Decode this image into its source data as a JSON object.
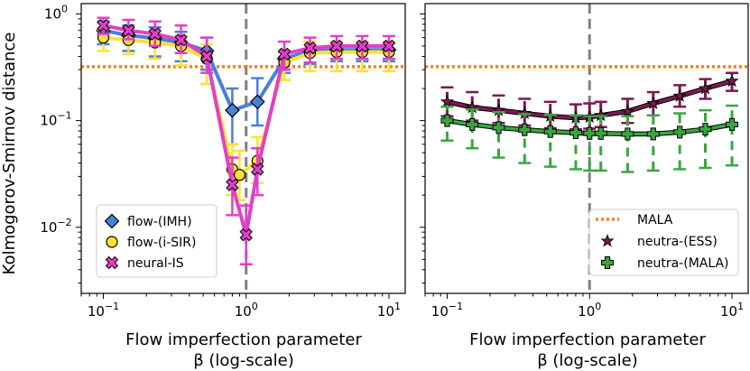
{
  "chart_data": [
    {
      "type": "line",
      "panel": "left",
      "xscale": "log",
      "yscale": "log",
      "xlim": [
        0.07,
        13.0
      ],
      "ylim": [
        0.0024,
        1.25
      ],
      "xticks": [
        {
          "value": 0.1,
          "base": "10",
          "exp": "−1"
        },
        {
          "value": 1,
          "base": "10",
          "exp": "0"
        },
        {
          "value": 10,
          "base": "10",
          "exp": "1"
        }
      ],
      "yticks": [
        {
          "value": 0.01,
          "base": "10",
          "exp": "−2"
        },
        {
          "value": 0.1,
          "base": "10",
          "exp": "−1"
        },
        {
          "value": 1,
          "base": "10",
          "exp": "0"
        }
      ],
      "xlabel_line1": "Flow imperfection parameter",
      "xlabel_line2": "β (log-scale)",
      "ylabel": "Kolmogorov-Smirnov distance",
      "legend_position": "lower-left",
      "vline_x": 1,
      "hline": {
        "name": "MALA",
        "y": 0.32,
        "color": "#ff7f0e"
      },
      "series": [
        {
          "name": "flow-(IMH)",
          "color": "#4a7fd6",
          "marker": "diamond",
          "x": [
            0.1,
            0.15,
            0.23,
            0.35,
            0.53,
            0.8,
            1.2,
            1.85,
            2.8,
            4.3,
            6.5,
            10
          ],
          "y": [
            0.7,
            0.63,
            0.59,
            0.54,
            0.45,
            0.125,
            0.15,
            0.38,
            0.45,
            0.46,
            0.46,
            0.46
          ],
          "err_lo": [
            0.52,
            0.45,
            0.4,
            0.36,
            0.3,
            0.06,
            0.09,
            0.28,
            0.34,
            0.36,
            0.36,
            0.36
          ],
          "err_hi": [
            0.85,
            0.78,
            0.75,
            0.68,
            0.6,
            0.2,
            0.25,
            0.44,
            0.55,
            0.55,
            0.55,
            0.55
          ]
        },
        {
          "name": "flow-(i-SIR)",
          "color": "#ffe033",
          "marker": "circle",
          "x": [
            0.1,
            0.15,
            0.23,
            0.35,
            0.53,
            0.8,
            0.9,
            1.2,
            1.85,
            2.8,
            4.3,
            6.5,
            10
          ],
          "y": [
            0.6,
            0.57,
            0.54,
            0.5,
            0.38,
            0.035,
            0.031,
            0.042,
            0.35,
            0.43,
            0.44,
            0.44,
            0.44
          ],
          "err_lo": [
            0.45,
            0.42,
            0.38,
            0.33,
            0.22,
            0.02,
            0.018,
            0.026,
            0.24,
            0.29,
            0.29,
            0.29,
            0.29
          ],
          "err_hi": [
            0.72,
            0.68,
            0.65,
            0.62,
            0.52,
            0.06,
            0.052,
            0.07,
            0.45,
            0.55,
            0.55,
            0.55,
            0.55
          ]
        },
        {
          "name": "neural-IS",
          "color": "#e040c8",
          "marker": "x",
          "x": [
            0.1,
            0.15,
            0.23,
            0.35,
            0.53,
            0.8,
            1.0,
            1.2,
            1.85,
            2.8,
            4.3,
            6.5,
            10
          ],
          "y": [
            0.78,
            0.7,
            0.65,
            0.57,
            0.4,
            0.025,
            0.0085,
            0.035,
            0.42,
            0.48,
            0.5,
            0.5,
            0.5
          ],
          "err_lo": [
            0.65,
            0.58,
            0.5,
            0.43,
            0.28,
            0.013,
            0.0045,
            0.02,
            0.3,
            0.35,
            0.38,
            0.38,
            0.38
          ],
          "err_hi": [
            0.92,
            0.88,
            0.85,
            0.78,
            0.6,
            0.045,
            0.016,
            0.055,
            0.55,
            0.6,
            0.62,
            0.62,
            0.62
          ]
        }
      ]
    },
    {
      "type": "line",
      "panel": "right",
      "xscale": "log",
      "yscale": "log",
      "xlim": [
        0.07,
        13.0
      ],
      "ylim": [
        0.0024,
        1.25
      ],
      "xticks": [
        {
          "value": 0.1,
          "base": "10",
          "exp": "−1"
        },
        {
          "value": 1,
          "base": "10",
          "exp": "0"
        },
        {
          "value": 10,
          "base": "10",
          "exp": "1"
        }
      ],
      "xlabel_line1": "Flow imperfection parameter",
      "xlabel_line2": "β (log-scale)",
      "legend_position": "lower-right",
      "vline_x": 1,
      "hline": {
        "name": "MALA",
        "y": 0.32,
        "color": "#ff7f0e"
      },
      "series": [
        {
          "name": "neutra-(ESS)",
          "color": "#7a1a52",
          "marker": "star",
          "x": [
            0.1,
            0.15,
            0.23,
            0.35,
            0.53,
            0.8,
            1.0,
            1.2,
            1.85,
            2.8,
            4.3,
            6.5,
            10
          ],
          "y": [
            0.15,
            0.133,
            0.125,
            0.117,
            0.11,
            0.106,
            0.108,
            0.112,
            0.122,
            0.145,
            0.17,
            0.2,
            0.235
          ],
          "err_lo": [
            0.11,
            0.1,
            0.095,
            0.09,
            0.085,
            0.083,
            0.084,
            0.087,
            0.095,
            0.112,
            0.135,
            0.16,
            0.19
          ],
          "err_hi": [
            0.205,
            0.185,
            0.172,
            0.16,
            0.15,
            0.142,
            0.145,
            0.15,
            0.16,
            0.185,
            0.215,
            0.245,
            0.28
          ]
        },
        {
          "name": "neutra-(MALA)",
          "color": "#3aa640",
          "marker": "plus",
          "x": [
            0.1,
            0.15,
            0.23,
            0.35,
            0.53,
            0.8,
            1.0,
            1.2,
            1.85,
            2.8,
            4.3,
            6.5,
            10
          ],
          "y": [
            0.1,
            0.092,
            0.086,
            0.082,
            0.079,
            0.077,
            0.076,
            0.076,
            0.075,
            0.075,
            0.078,
            0.083,
            0.092
          ],
          "err_lo": [
            0.065,
            0.055,
            0.045,
            0.04,
            0.037,
            0.035,
            0.034,
            0.034,
            0.033,
            0.034,
            0.035,
            0.036,
            0.038
          ],
          "err_hi": [
            0.135,
            0.127,
            0.12,
            0.115,
            0.113,
            0.112,
            0.11,
            0.11,
            0.11,
            0.112,
            0.117,
            0.125,
            0.138
          ]
        }
      ]
    }
  ]
}
